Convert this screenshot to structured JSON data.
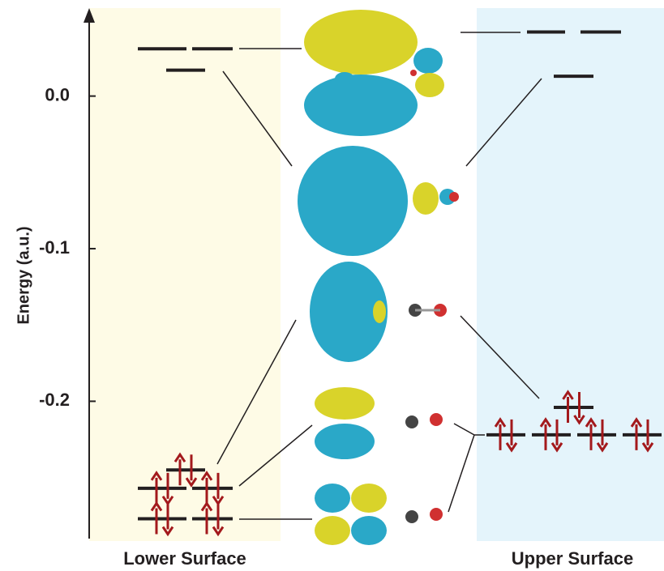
{
  "axis": {
    "label": "Energy (a.u.)",
    "ylim": [
      -0.29,
      0.055
    ],
    "ticks": [
      {
        "value": 0,
        "label": "0.0"
      },
      {
        "value": -0.1,
        "label": "-0.1"
      },
      {
        "value": -0.2,
        "label": "-0.2"
      }
    ]
  },
  "lower_surface": {
    "label": "Lower Surface",
    "levels": [
      {
        "energy": 0.031,
        "degeneracy": 2,
        "occupied": false
      },
      {
        "energy": 0.017,
        "degeneracy": 1,
        "occupied": false
      },
      {
        "energy": -0.245,
        "degeneracy": 1,
        "occupied": true
      },
      {
        "energy": -0.257,
        "degeneracy": 2,
        "occupied": true
      },
      {
        "energy": -0.277,
        "degeneracy": 2,
        "occupied": true
      }
    ]
  },
  "upper_surface": {
    "label": "Upper Surface",
    "levels": [
      {
        "energy": 0.042,
        "degeneracy": 2,
        "occupied": false
      },
      {
        "energy": 0.013,
        "degeneracy": 1,
        "occupied": false
      },
      {
        "energy": -0.204,
        "degeneracy": 1,
        "occupied": true
      },
      {
        "energy": -0.222,
        "degeneracy": 4,
        "occupied": true
      }
    ]
  }
}
